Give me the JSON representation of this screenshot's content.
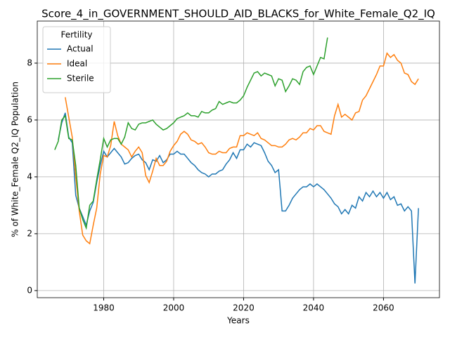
{
  "chart_data": {
    "type": "line",
    "title": "Score_4_in_GOVERNMENT_SHOULD_AID_BLACKS_for_White_Female_Q2_IQ",
    "xlabel": "Years",
    "ylabel": "% of White_Female Q2_IQ Population",
    "legend_title": "Fertility",
    "legend": "upper left",
    "grid": true,
    "xlim": [
      1961,
      2076
    ],
    "ylim": [
      -0.25,
      9.48
    ],
    "xticks": [
      1980,
      2000,
      2020,
      2040,
      2060
    ],
    "yticks": [
      0,
      2,
      4,
      6,
      8
    ],
    "x": [
      1966,
      1967,
      1968,
      1969,
      1970,
      1971,
      1972,
      1973,
      1974,
      1975,
      1976,
      1977,
      1978,
      1979,
      1980,
      1981,
      1982,
      1983,
      1984,
      1985,
      1986,
      1987,
      1988,
      1989,
      1990,
      1991,
      1992,
      1993,
      1994,
      1995,
      1996,
      1997,
      1998,
      1999,
      2000,
      2001,
      2002,
      2003,
      2004,
      2005,
      2006,
      2007,
      2008,
      2009,
      2010,
      2011,
      2012,
      2013,
      2014,
      2015,
      2016,
      2017,
      2018,
      2019,
      2020,
      2021,
      2022,
      2023,
      2024,
      2025,
      2026,
      2027,
      2028,
      2029,
      2030,
      2031,
      2032,
      2033,
      2034,
      2035,
      2036,
      2037,
      2038,
      2039,
      2040,
      2041,
      2042,
      2043,
      2044,
      2045,
      2046,
      2047,
      2048,
      2049,
      2050,
      2051,
      2052,
      2053,
      2054,
      2055,
      2056,
      2057,
      2058,
      2059,
      2060,
      2061,
      2062,
      2063,
      2064,
      2065,
      2066,
      2067,
      2068,
      2069,
      2070
    ],
    "series": [
      {
        "name": "Actual",
        "color": "#1f77b4",
        "values": [
          null,
          5.3,
          5.9,
          6.25,
          5.4,
          5.2,
          3.35,
          2.9,
          2.6,
          2.3,
          2.8,
          3.1,
          3.8,
          4.4,
          4.9,
          4.7,
          4.85,
          5.0,
          4.85,
          4.7,
          4.45,
          4.5,
          4.65,
          4.75,
          4.8,
          4.6,
          4.5,
          4.25,
          4.6,
          4.55,
          4.75,
          4.5,
          4.6,
          4.8,
          4.8,
          4.9,
          4.8,
          4.8,
          4.65,
          4.5,
          4.4,
          4.25,
          4.15,
          4.1,
          4.0,
          4.1,
          4.1,
          4.2,
          4.25,
          4.45,
          4.6,
          4.85,
          4.65,
          4.95,
          4.95,
          5.15,
          5.05,
          5.2,
          5.15,
          5.1,
          4.85,
          4.55,
          4.4,
          4.15,
          4.25,
          2.8,
          2.8,
          3.0,
          3.25,
          3.4,
          3.55,
          3.65,
          3.65,
          3.75,
          3.65,
          3.75,
          3.65,
          3.55,
          3.4,
          3.25,
          3.05,
          2.95,
          2.7,
          2.85,
          2.7,
          3.0,
          2.9,
          3.3,
          3.15,
          3.45,
          3.3,
          3.5,
          3.3,
          3.45,
          3.25,
          3.45,
          3.2,
          3.3,
          3.0,
          3.05,
          2.8,
          2.95,
          2.8,
          0.25,
          2.9
        ]
      },
      {
        "name": "Ideal",
        "color": "#ff7f0e",
        "values": [
          null,
          null,
          null,
          6.8,
          6.1,
          5.4,
          4.0,
          2.8,
          1.95,
          1.75,
          1.65,
          2.3,
          2.9,
          4.1,
          4.75,
          4.7,
          5.1,
          5.95,
          5.45,
          5.15,
          5.05,
          4.95,
          4.7,
          4.9,
          5.05,
          4.85,
          4.05,
          3.8,
          4.2,
          4.65,
          4.4,
          4.4,
          4.55,
          4.9,
          5.1,
          5.25,
          5.5,
          5.6,
          5.5,
          5.3,
          5.25,
          5.15,
          5.2,
          5.05,
          4.85,
          4.8,
          4.8,
          4.9,
          4.85,
          4.85,
          5.0,
          5.05,
          5.05,
          5.45,
          5.45,
          5.55,
          5.5,
          5.45,
          5.55,
          5.35,
          5.3,
          5.2,
          5.1,
          5.1,
          5.05,
          5.05,
          5.15,
          5.3,
          5.35,
          5.3,
          5.4,
          5.55,
          5.55,
          5.7,
          5.65,
          5.8,
          5.8,
          5.6,
          5.55,
          5.5,
          6.15,
          6.55,
          6.1,
          6.2,
          6.1,
          6.0,
          6.25,
          6.3,
          6.7,
          6.85,
          7.1,
          7.35,
          7.6,
          7.9,
          7.9,
          8.35,
          8.2,
          8.3,
          8.1,
          8.0,
          7.65,
          7.6,
          7.35,
          7.25,
          7.45
        ]
      },
      {
        "name": "Sterile",
        "color": "#2ca02c",
        "values": [
          4.95,
          5.25,
          6.0,
          6.15,
          5.35,
          5.3,
          4.4,
          2.9,
          2.5,
          2.2,
          3.0,
          3.15,
          3.9,
          4.6,
          5.35,
          5.05,
          5.3,
          5.35,
          5.35,
          5.15,
          5.4,
          5.9,
          5.7,
          5.65,
          5.85,
          5.9,
          5.9,
          5.95,
          6.0,
          5.85,
          5.75,
          5.65,
          5.7,
          5.8,
          5.9,
          6.05,
          6.1,
          6.15,
          6.25,
          6.15,
          6.15,
          6.1,
          6.3,
          6.25,
          6.25,
          6.35,
          6.4,
          6.65,
          6.55,
          6.6,
          6.65,
          6.6,
          6.6,
          6.7,
          6.85,
          7.15,
          7.4,
          7.65,
          7.7,
          7.55,
          7.65,
          7.6,
          7.55,
          7.2,
          7.45,
          7.4,
          7.0,
          7.2,
          7.45,
          7.4,
          7.25,
          7.7,
          7.85,
          7.9,
          7.6,
          7.9,
          8.2,
          8.15,
          8.9,
          null,
          null,
          null,
          null,
          null,
          null,
          null,
          null,
          null,
          null,
          null,
          null,
          null,
          null,
          null,
          null,
          null,
          null,
          null,
          null,
          null,
          null,
          null,
          null,
          null,
          null
        ]
      }
    ]
  }
}
